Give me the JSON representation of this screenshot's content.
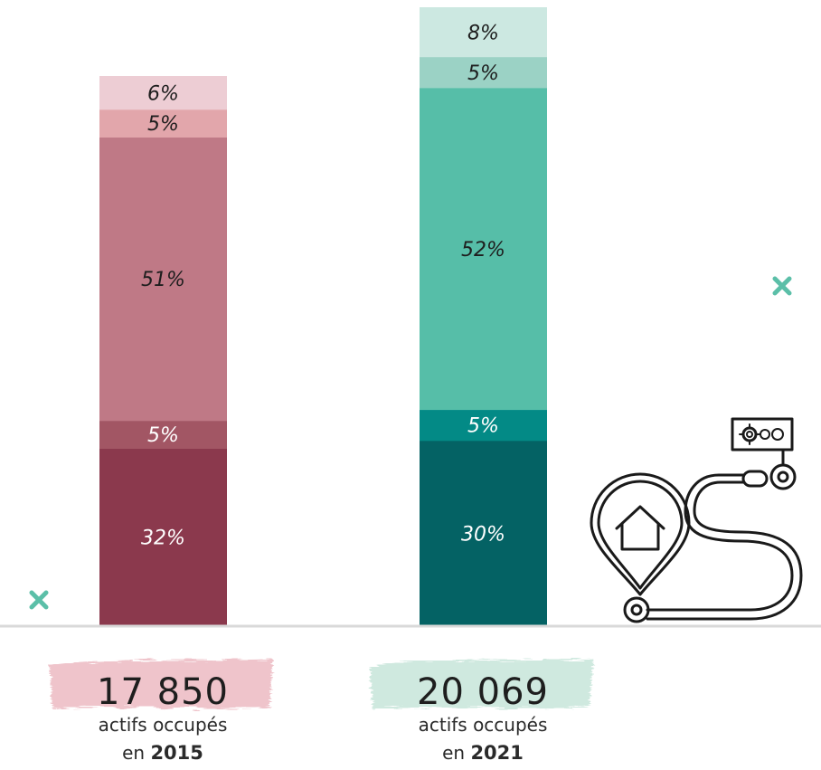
{
  "chart_data": {
    "type": "bar",
    "stacked": true,
    "bars": [
      {
        "total": "17 850",
        "caption": "actifs occupés",
        "year_prefix": "en",
        "year": "2015",
        "segments": [
          {
            "value": 32,
            "label": "32%",
            "color": "#8b394d",
            "text_color": "#ffffff"
          },
          {
            "value": 5,
            "label": "5%",
            "color": "#a25664",
            "text_color": "#ffffff"
          },
          {
            "value": 51,
            "label": "51%",
            "color": "#bf7986",
            "text_color": "#1e1e1e"
          },
          {
            "value": 5,
            "label": "5%",
            "color": "#e2a6ab",
            "text_color": "#1e1e1e"
          },
          {
            "value": 6,
            "label": "6%",
            "color": "#edcdd4",
            "text_color": "#1e1e1e"
          }
        ],
        "badge_color": "#efc4cb"
      },
      {
        "total": "20 069",
        "caption": "actifs occupés",
        "year_prefix": "en",
        "year": "2021",
        "segments": [
          {
            "value": 30,
            "label": "30%",
            "color": "#046264",
            "text_color": "#ffffff"
          },
          {
            "value": 5,
            "label": "5%",
            "color": "#038a86",
            "text_color": "#ffffff"
          },
          {
            "value": 52,
            "label": "52%",
            "color": "#56bea8",
            "text_color": "#1e1e1e"
          },
          {
            "value": 5,
            "label": "5%",
            "color": "#9bd2c5",
            "text_color": "#1e1e1e"
          },
          {
            "value": 8,
            "label": "8%",
            "color": "#cce8e1",
            "text_color": "#1e1e1e"
          }
        ],
        "badge_color": "#cfe9df"
      }
    ]
  },
  "colors": {
    "baseline": "#d9d9d9",
    "accent_mark": "#5bbfa8",
    "icon_stroke": "#1a1a1a"
  },
  "icons": [
    "cross-mark-icon",
    "location-pin-house-icon",
    "route-path-icon",
    "gears-sign-icon"
  ]
}
